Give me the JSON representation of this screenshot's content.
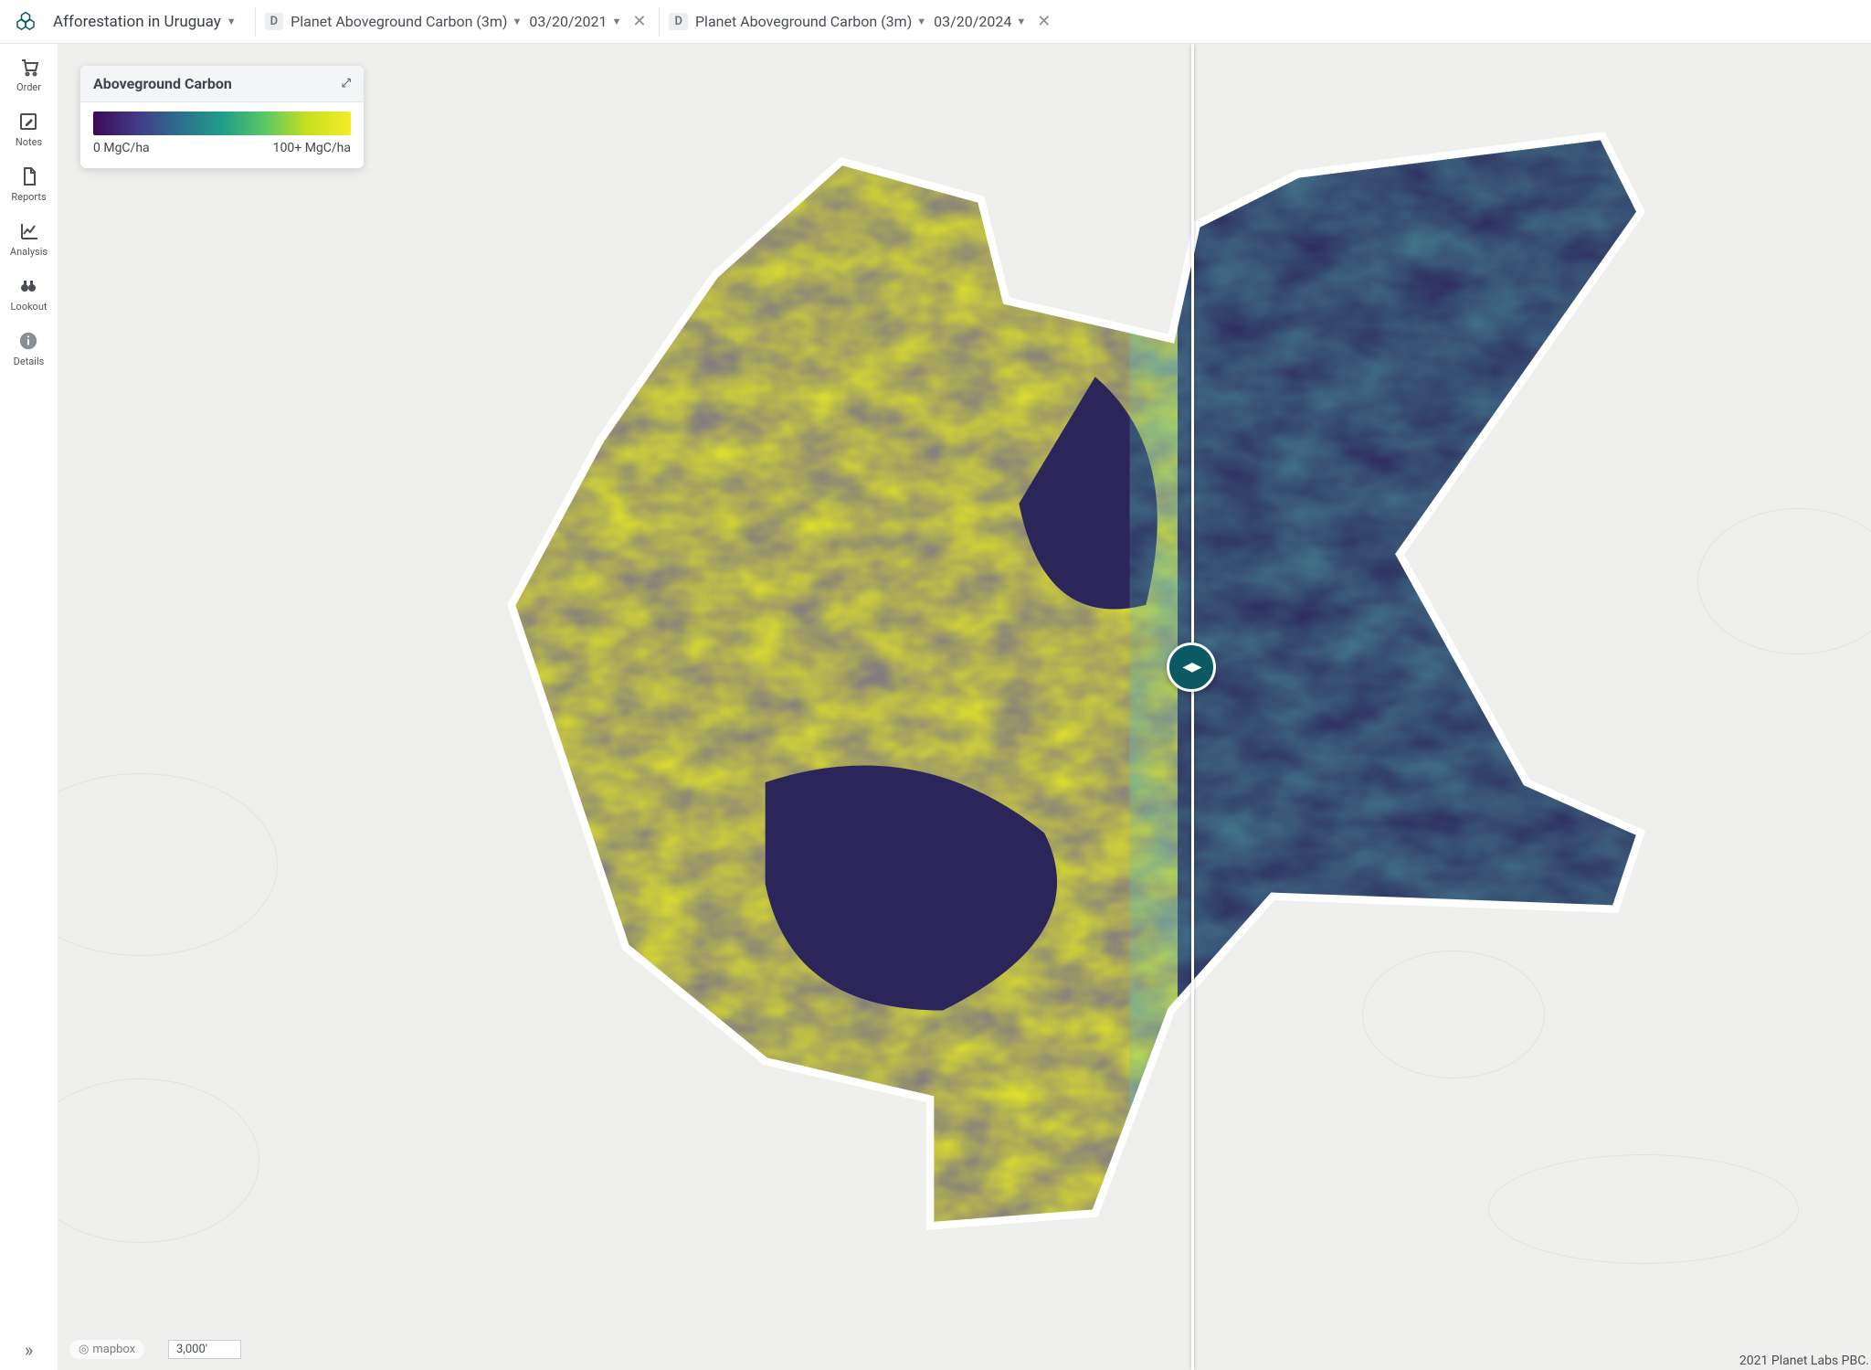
{
  "project": {
    "title": "Afforestation in Uruguay"
  },
  "slots": {
    "left": {
      "chip": "D",
      "layer": "Planet Aboveground Carbon (3m)",
      "date": "03/20/2021"
    },
    "right": {
      "chip": "D",
      "layer": "Planet Aboveground Carbon (3m)",
      "date": "03/20/2024"
    }
  },
  "sidebar": {
    "items": [
      {
        "name": "order",
        "label": "Order"
      },
      {
        "name": "notes",
        "label": "Notes"
      },
      {
        "name": "reports",
        "label": "Reports"
      },
      {
        "name": "analysis",
        "label": "Analysis"
      },
      {
        "name": "lookout",
        "label": "Lookout"
      },
      {
        "name": "details",
        "label": "Details"
      }
    ]
  },
  "legend": {
    "title": "Aboveground Carbon",
    "min_label": "0 MgC/ha",
    "max_label": "100+ MgC/ha",
    "gradient_stops": [
      "#3b0954",
      "#423a85",
      "#2c6e8e",
      "#1f9d89",
      "#5ac864",
      "#c8e020",
      "#f5eb27"
    ]
  },
  "compare": {
    "split_percent": 62.5,
    "left_fill_dominant": "#e9ec20",
    "left_fill_secondary": "#2b2559",
    "right_fill_dominant": "#2b2559",
    "right_fill_secondary": "#1f9d89"
  },
  "map": {
    "background_color": "#efefed",
    "scale_label": "3,000'",
    "provider": "mapbox",
    "attribution": "2021 Planet Labs PBC."
  },
  "colors": {
    "brand_teal": "#0b5a63",
    "text": "#3f464d",
    "muted": "#7a7f85",
    "divider": "#e5e5e5"
  }
}
